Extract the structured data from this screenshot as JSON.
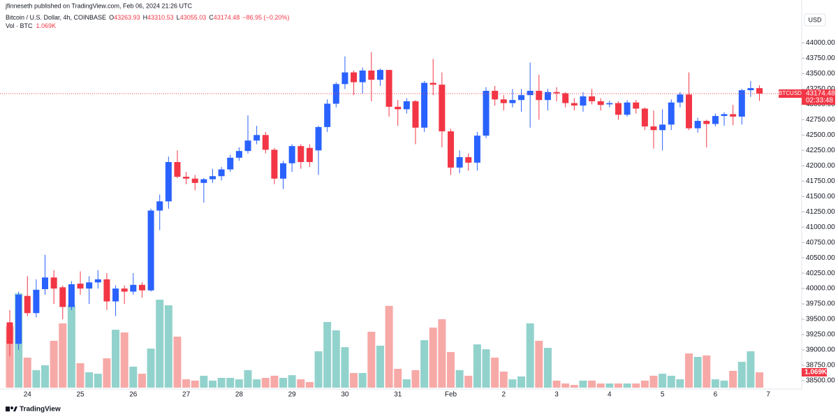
{
  "chart_data": {
    "type": "candlestick",
    "header": {
      "author": "jfinneseth published on TradingView.com, Feb 06, 2024 21:26 UTC",
      "symbol": "Bitcoin / U.S. Dollar, 4h, COINBASE",
      "open_prefix": "O",
      "high_prefix": "H",
      "low_prefix": "L",
      "close_prefix": "C",
      "change": "−86.95 (−0.20%)",
      "volume_name": "Vol · BTC"
    },
    "currency": "USD",
    "ticker": "BTCUSD",
    "countdown": "02:33:48",
    "brand": "TradingView",
    "categories": [
      null,
      null,
      "24",
      null,
      null,
      null,
      null,
      null,
      "25",
      null,
      null,
      null,
      null,
      null,
      "26",
      null,
      null,
      null,
      null,
      null,
      "27",
      null,
      null,
      null,
      null,
      null,
      "28",
      null,
      null,
      null,
      null,
      null,
      "29",
      null,
      null,
      null,
      null,
      null,
      "30",
      null,
      null,
      null,
      null,
      null,
      "31",
      null,
      null,
      null,
      null,
      null,
      "Feb",
      null,
      null,
      null,
      null,
      null,
      "2",
      null,
      null,
      null,
      null,
      null,
      "3",
      null,
      null,
      null,
      null,
      null,
      "4",
      null,
      null,
      null,
      null,
      null,
      "5",
      null,
      null,
      null,
      null,
      null,
      "6",
      null,
      null,
      null,
      null,
      null
    ],
    "next_category": "7",
    "open": [
      39450,
      39100,
      39880,
      39600,
      39990,
      40180,
      40020,
      39700,
      40080,
      40000,
      40100,
      40150,
      39790,
      40000,
      39950,
      40060,
      39970,
      41270,
      41420,
      42060,
      41820,
      41790,
      41720,
      41780,
      41830,
      41940,
      42130,
      42240,
      42410,
      42500,
      42260,
      41790,
      42040,
      42320,
      42290,
      42250,
      42630,
      43010,
      43330,
      43520,
      43360,
      43550,
      43400,
      43560,
      42960,
      42920,
      43050,
      42620,
      43350,
      43320,
      42560,
      41970,
      42140,
      42050,
      42490,
      43220,
      43080,
      43020,
      43070,
      43150,
      43220,
      43070,
      43200,
      43180,
      43020,
      42980,
      43130,
      43050,
      43000,
      43020,
      42830,
      43030,
      42930,
      42640,
      42580,
      42670,
      43030,
      43160,
      42610,
      42730,
      42680,
      42810,
      42840,
      42800,
      43230,
      43263.93
    ],
    "high": [
      39650,
      39950,
      40200,
      40150,
      40550,
      40300,
      40050,
      40120,
      40280,
      40200,
      40300,
      40250,
      40050,
      40050,
      40250,
      40100,
      41300,
      41530,
      42150,
      42250,
      41900,
      41850,
      41800,
      41950,
      41980,
      42180,
      42300,
      42820,
      42650,
      42550,
      42290,
      42080,
      42350,
      42350,
      42350,
      42650,
      43080,
      43360,
      43780,
      43550,
      43600,
      43850,
      43580,
      43560,
      43070,
      43100,
      43070,
      43380,
      43740,
      43520,
      42600,
      42250,
      42200,
      42550,
      43280,
      43300,
      43150,
      43250,
      43250,
      43680,
      43480,
      43250,
      43280,
      43200,
      43100,
      43200,
      43250,
      43100,
      43060,
      43050,
      43070,
      43070,
      42950,
      42900,
      42920,
      43080,
      43200,
      43520,
      42780,
      42750,
      42850,
      42870,
      42990,
      43250,
      43380,
      43310.53
    ],
    "low": [
      38900,
      39000,
      39550,
      39530,
      39900,
      39750,
      39500,
      39650,
      39900,
      39750,
      40000,
      39650,
      39550,
      39750,
      39900,
      39850,
      39950,
      40950,
      41300,
      41800,
      41700,
      41600,
      41400,
      41720,
      41760,
      41900,
      42080,
      42200,
      42350,
      42200,
      41700,
      41620,
      41900,
      41950,
      41980,
      41850,
      42550,
      42950,
      43250,
      43150,
      43170,
      43050,
      43300,
      42800,
      42650,
      42850,
      42350,
      42550,
      43150,
      42300,
      41850,
      41880,
      41920,
      41920,
      42450,
      42980,
      42900,
      42950,
      42880,
      42620,
      42750,
      42900,
      43050,
      42950,
      42900,
      42880,
      43000,
      42900,
      42950,
      42750,
      42800,
      42850,
      42580,
      42280,
      42250,
      42580,
      42950,
      42580,
      42540,
      42300,
      42640,
      42650,
      42660,
      42670,
      43120,
      43055.03
    ],
    "close": [
      39100,
      39900,
      39600,
      39980,
      40180,
      40000,
      39700,
      40070,
      40000,
      40100,
      40150,
      39790,
      40000,
      39950,
      40060,
      39970,
      41270,
      41420,
      42060,
      41820,
      41790,
      41720,
      41780,
      41830,
      41940,
      42130,
      42240,
      42410,
      42500,
      42260,
      41790,
      42040,
      42320,
      42060,
      42060,
      42630,
      43010,
      43330,
      43520,
      43360,
      43550,
      43400,
      43560,
      42960,
      42920,
      43050,
      42620,
      43350,
      43320,
      42560,
      41970,
      42140,
      42050,
      42490,
      43220,
      43080,
      43020,
      43070,
      43150,
      43220,
      43070,
      43200,
      43180,
      43020,
      42980,
      43130,
      43050,
      42990,
      43020,
      42830,
      43030,
      42930,
      42640,
      42580,
      42670,
      43030,
      43160,
      42610,
      42730,
      42680,
      42810,
      42840,
      42800,
      43230,
      43263.93,
      43174.48
    ],
    "volume": [
      4280,
      6560,
      2090,
      1220,
      1560,
      3260,
      4470,
      5730,
      1700,
      1070,
      970,
      2040,
      4030,
      3840,
      1460,
      970,
      2720,
      6120,
      5730,
      3550,
      580,
      490,
      830,
      490,
      680,
      680,
      580,
      1220,
      580,
      680,
      830,
      680,
      870,
      580,
      390,
      2530,
      4570,
      3990,
      2820,
      1020,
      1020,
      3890,
      2920,
      5690,
      1310,
      580,
      1220,
      3300,
      4180,
      4760,
      2480,
      1220,
      830,
      3010,
      2670,
      2090,
      1120,
      580,
      780,
      4470,
      3260,
      2770,
      490,
      290,
      190,
      490,
      490,
      290,
      290,
      290,
      290,
      290,
      490,
      830,
      970,
      830,
      580,
      2380,
      2140,
      2240,
      580,
      490,
      1170,
      1800,
      2530,
      1069
    ],
    "volume_labels": [
      null,
      null,
      null,
      null,
      null,
      null,
      null,
      null,
      null,
      null,
      null,
      null,
      null,
      null,
      null,
      null,
      null,
      null,
      null,
      null,
      null,
      null,
      null,
      null,
      null,
      null,
      null,
      null,
      null,
      null,
      null,
      null,
      null,
      null,
      null,
      null,
      null,
      null,
      null,
      null,
      null,
      null,
      null,
      null,
      null,
      null,
      null,
      null,
      null,
      null,
      null,
      null,
      null,
      null,
      null,
      null,
      null,
      null,
      null,
      null,
      null,
      null,
      null,
      null,
      null,
      null,
      null,
      null,
      null,
      null,
      null,
      null,
      null,
      null,
      null,
      null,
      null,
      null,
      null,
      null,
      null,
      null,
      null,
      null,
      null,
      "1.069K"
    ],
    "up_color": "#2962ff",
    "down_color": "#f23645",
    "volume_up_color": "#92d2cc",
    "volume_down_color": "#f7a9a7",
    "ylim": [
      38363,
      44699
    ],
    "yticks": [
      {
        "value": 38500,
        "label": "38500.00"
      },
      {
        "value": 38750,
        "label": "38750.00"
      },
      {
        "value": 39000,
        "label": "39000.00"
      },
      {
        "value": 39250,
        "label": "39250.00"
      },
      {
        "value": 39500,
        "label": "39500.00"
      },
      {
        "value": 39750,
        "label": "39750.00"
      },
      {
        "value": 40000,
        "label": "40000.00"
      },
      {
        "value": 40250,
        "label": "40250.00"
      },
      {
        "value": 40500,
        "label": "40500.00"
      },
      {
        "value": 40750,
        "label": "40750.00"
      },
      {
        "value": 41000,
        "label": "41000.00"
      },
      {
        "value": 41250,
        "label": "41250.00"
      },
      {
        "value": 41500,
        "label": "41500.00"
      },
      {
        "value": 41750,
        "label": "41750.00"
      },
      {
        "value": 42000,
        "label": "42000.00"
      },
      {
        "value": 42250,
        "label": "42250.00"
      },
      {
        "value": 42500,
        "label": "42500.00"
      },
      {
        "value": 42750,
        "label": "42750.00"
      },
      {
        "value": 43000,
        "label": "43000.00"
      },
      {
        "value": 43250,
        "label": "43250.00"
      },
      {
        "value": 43500,
        "label": "43500.00"
      },
      {
        "value": 43750,
        "label": "43750.00"
      },
      {
        "value": 44000,
        "label": "44000.00"
      }
    ],
    "grid": false
  }
}
